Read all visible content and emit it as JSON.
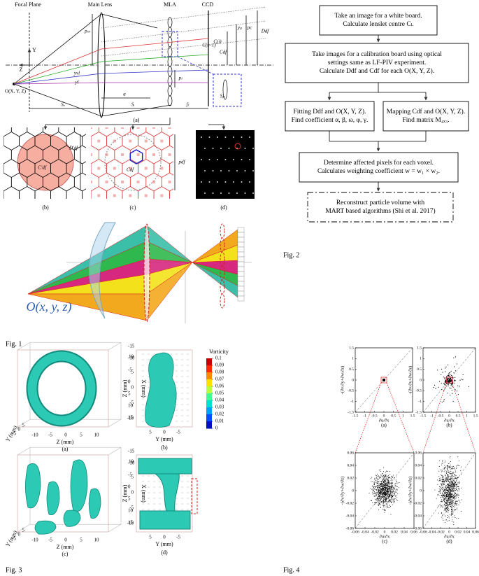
{
  "fig1": {
    "caption": "Fig. 1",
    "headers": [
      "Focal Plane",
      "Main Lens",
      "MLA",
      "CCD"
    ],
    "object_label": "O(X, Y, Z)",
    "axes": [
      "Y",
      "Z"
    ],
    "dims": [
      "Sₒ",
      "Sᵢ",
      "fₗ",
      "a",
      "pₘ",
      "pₗ",
      "yₚ",
      "pc",
      "Ddf",
      "Cdf",
      "C(i)",
      "C(i−1)",
      "Sₚ",
      "yvl",
      "yl"
    ],
    "panel_captions": [
      "(a)",
      "(b)",
      "(c)",
      "(d)"
    ],
    "panel_b": [
      "C′df",
      "D′df"
    ],
    "panel_c": [
      "Cdf",
      "pdf"
    ],
    "object_3d": "O(x, y, z)"
  },
  "fig2": {
    "caption": "Fig. 2",
    "steps": [
      [
        "Take an image for a white board.",
        "Calculate lenslet centre Cₗ."
      ],
      [
        "Take images for a calibration board using optical",
        "settings same as LF-PIV experiment.",
        "Calculate Ddf and Cdf for each O(X, Y, Z)."
      ],
      [
        "Fitting Ddf and O(X, Y, Z).",
        "Find coefficient α, β, ω, φ, γ."
      ],
      [
        "Mapping Cdf and O(X, Y, Z).",
        "Find matrix M₄ₓ₃."
      ],
      [
        "Determine affected pixels for each voxel.",
        "Calculates weighting coefficient w = w₁ × w₂."
      ],
      [
        "Reconstruct particle volume with",
        "MART based algorithms (Shi et al. 2017)"
      ]
    ]
  },
  "fig3": {
    "caption": "Fig. 3",
    "colorbar": {
      "title": "Vorticity",
      "ticks": [
        0.1,
        0.09,
        0.08,
        0.07,
        0.06,
        0.05,
        0.04,
        0.03,
        0.02,
        0.01,
        0
      ]
    },
    "panels": [
      {
        "caption": "(a)",
        "xlabel": "X (mm)",
        "ylabel": "Y (mm)",
        "zlabel": "Z (mm)",
        "x_ticks": [
          -15,
          -10,
          -5,
          0,
          5,
          10,
          15
        ],
        "z_ticks": [
          -10,
          -5,
          0,
          5,
          10
        ],
        "y_ticks": [
          5,
          0,
          -5
        ]
      },
      {
        "caption": "(b)",
        "zlabel": "Z (mm)",
        "ylabel": "Y (mm)",
        "z_ticks": [
          10,
          5,
          0,
          -5,
          -10
        ],
        "y_ticks": [
          5,
          0,
          -5
        ]
      },
      {
        "caption": "(c)",
        "xlabel": "X (mm)",
        "ylabel": "Y (mm)",
        "zlabel": "Z (mm)",
        "x_ticks": [
          -15,
          -10,
          -5,
          0,
          5,
          10,
          15
        ],
        "z_ticks": [
          -10,
          -5,
          0,
          5,
          10
        ],
        "y_ticks": [
          5,
          0,
          -5
        ]
      },
      {
        "caption": "(d)",
        "zlabel": "Z (mm)",
        "ylabel": "Y (mm)",
        "z_ticks": [
          10,
          5,
          0,
          -5,
          -10
        ],
        "y_ticks": [
          5,
          0,
          -5
        ]
      }
    ]
  },
  "fig4": {
    "caption": "Fig. 4",
    "panels": [
      {
        "caption": "(a)",
        "xlabel": "∂u/∂x",
        "ylabel": "-(∂v/∂y+∂w/∂z)",
        "ticks": [
          -1.5,
          -1,
          -0.5,
          0,
          0.5,
          1,
          1.5
        ]
      },
      {
        "caption": "(b)",
        "xlabel": "∂u/∂x",
        "ylabel": "-(∂v/∂y+∂w/∂z)",
        "ticks": [
          -1.5,
          -1,
          -0.5,
          0,
          0.5,
          1,
          1.5
        ]
      },
      {
        "caption": "(c)",
        "xlabel": "∂u/∂x",
        "ylabel": "-(∂v/∂y+∂w/∂z)",
        "ticks": [
          -0.06,
          -0.04,
          -0.02,
          0,
          0.02,
          0.04,
          0.06
        ]
      },
      {
        "caption": "(d)",
        "xlabel": "∂u/∂x",
        "ylabel": "-(∂v/∂y+∂w/∂z)",
        "ticks": [
          -0.06,
          -0.04,
          -0.02,
          0,
          0.02,
          0.04,
          0.06
        ]
      }
    ]
  }
}
